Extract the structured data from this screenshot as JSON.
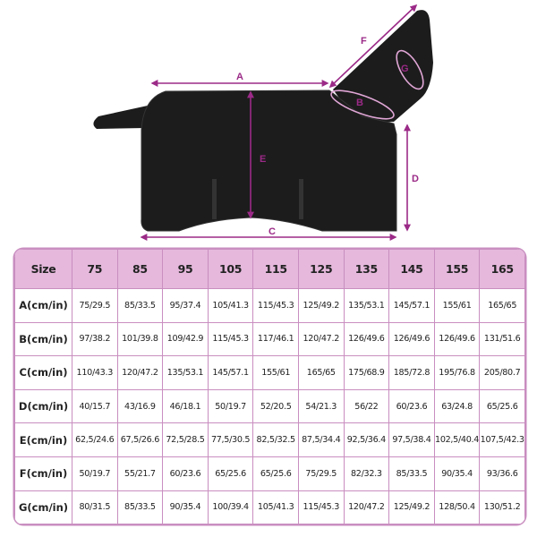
{
  "diagram": {
    "labels": {
      "A": "A",
      "B": "B",
      "C": "C",
      "D": "D",
      "E": "E",
      "F": "F",
      "G": "G"
    },
    "accent_color": "#9b2a87",
    "product_color": "#1c1c1c"
  },
  "table": {
    "header_color": "#e5b8dc",
    "border_color": "#c98ec0",
    "headers": [
      "Size",
      "75",
      "85",
      "95",
      "105",
      "115",
      "125",
      "135",
      "145",
      "155",
      "165"
    ],
    "rows": [
      {
        "label": "A(cm/in)",
        "values": [
          "75/29.5",
          "85/33.5",
          "95/37.4",
          "105/41.3",
          "115/45.3",
          "125/49.2",
          "135/53.1",
          "145/57.1",
          "155/61",
          "165/65"
        ]
      },
      {
        "label": "B(cm/in)",
        "values": [
          "97/38.2",
          "101/39.8",
          "109/42.9",
          "115/45.3",
          "117/46.1",
          "120/47.2",
          "126/49.6",
          "126/49.6",
          "126/49.6",
          "131/51.6"
        ]
      },
      {
        "label": "C(cm/in)",
        "values": [
          "110/43.3",
          "120/47.2",
          "135/53.1",
          "145/57.1",
          "155/61",
          "165/65",
          "175/68.9",
          "185/72.8",
          "195/76.8",
          "205/80.7"
        ]
      },
      {
        "label": "D(cm/in)",
        "values": [
          "40/15.7",
          "43/16.9",
          "46/18.1",
          "50/19.7",
          "52/20.5",
          "54/21.3",
          "56/22",
          "60/23.6",
          "63/24.8",
          "65/25.6"
        ]
      },
      {
        "label": "E(cm/in)",
        "values": [
          "62,5/24.6",
          "67,5/26.6",
          "72,5/28.5",
          "77,5/30.5",
          "82,5/32.5",
          "87,5/34.4",
          "92,5/36.4",
          "97,5/38.4",
          "102,5/40.4",
          "107,5/42.3"
        ]
      },
      {
        "label": "F(cm/in)",
        "values": [
          "50/19.7",
          "55/21.7",
          "60/23.6",
          "65/25.6",
          "65/25.6",
          "75/29.5",
          "82/32.3",
          "85/33.5",
          "90/35.4",
          "93/36.6"
        ]
      },
      {
        "label": "G(cm/in)",
        "values": [
          "80/31.5",
          "85/33.5",
          "90/35.4",
          "100/39.4",
          "105/41.3",
          "115/45.3",
          "120/47.2",
          "125/49.2",
          "128/50.4",
          "130/51.2"
        ]
      }
    ]
  }
}
